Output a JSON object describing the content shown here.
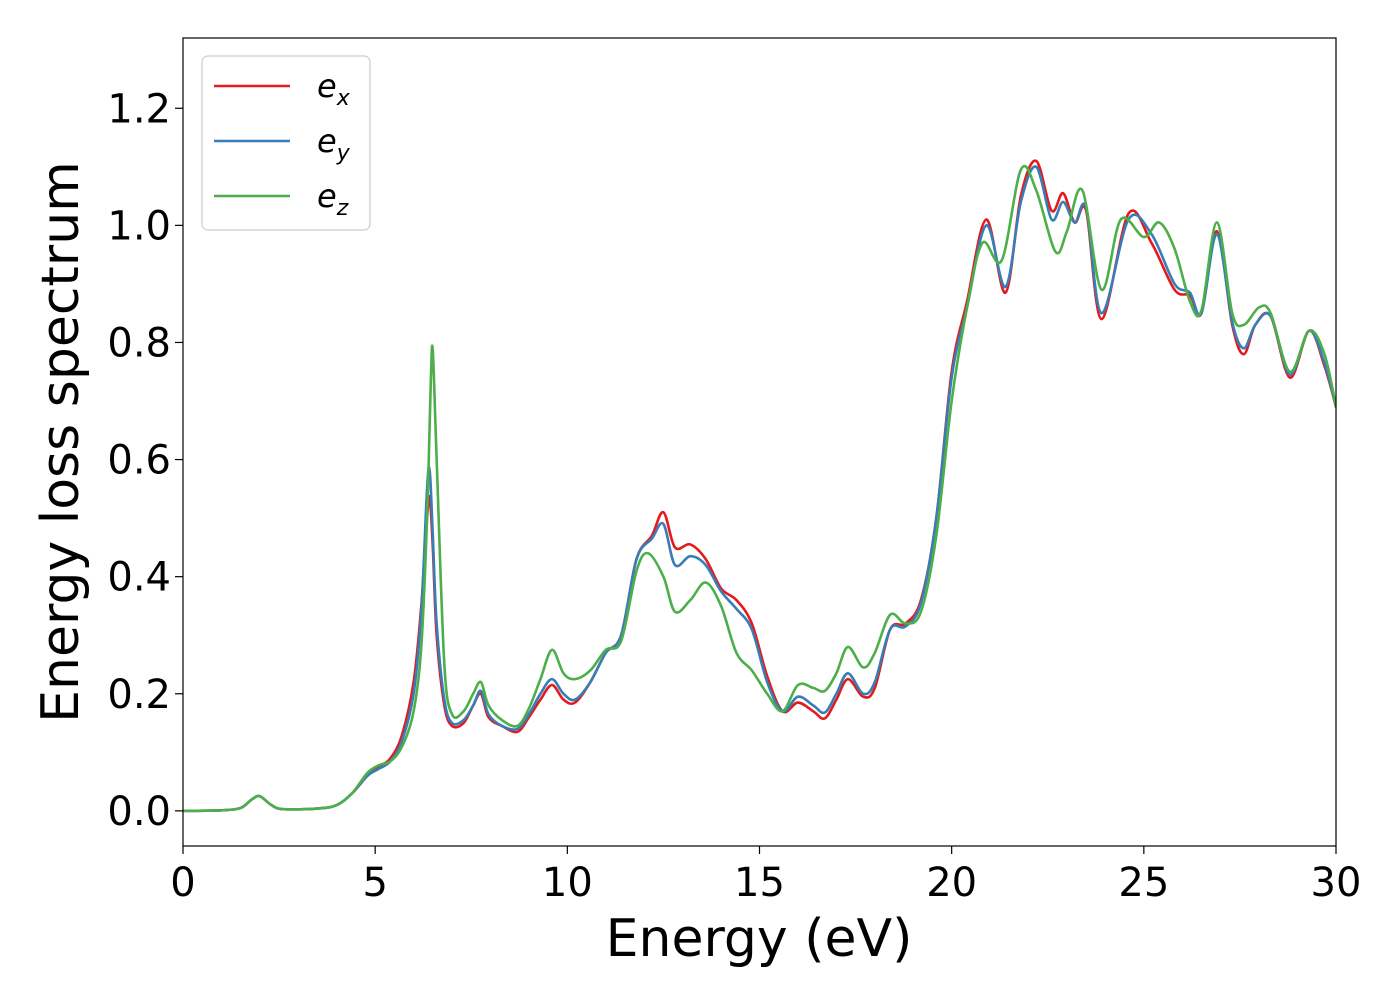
{
  "chart_data": {
    "type": "line",
    "title": "",
    "xlabel": "Energy (eV)",
    "ylabel": "Energy loss spectrum",
    "xlim": [
      0,
      30
    ],
    "ylim": [
      -0.06,
      1.32
    ],
    "xticks": [
      0,
      5,
      10,
      15,
      20,
      25,
      30
    ],
    "xtick_labels": [
      "0",
      "5",
      "10",
      "15",
      "20",
      "25",
      "30"
    ],
    "yticks": [
      0.0,
      0.2,
      0.4,
      0.6,
      0.8,
      1.0,
      1.2
    ],
    "ytick_labels": [
      "0.0",
      "0.2",
      "0.4",
      "0.6",
      "0.8",
      "1.0",
      "1.2"
    ],
    "grid": false,
    "legend_position": "top-left",
    "series": [
      {
        "name": "e_x",
        "legend_base": "e",
        "legend_sub": "x",
        "color": "#e41a1c",
        "points": [
          [
            0,
            0
          ],
          [
            1,
            0.001
          ],
          [
            1.5,
            0.005
          ],
          [
            1.8,
            0.02
          ],
          [
            2,
            0.025
          ],
          [
            2.3,
            0.01
          ],
          [
            2.6,
            0.003
          ],
          [
            3.5,
            0.004
          ],
          [
            4,
            0.01
          ],
          [
            4.4,
            0.03
          ],
          [
            4.8,
            0.06
          ],
          [
            5.1,
            0.075
          ],
          [
            5.4,
            0.09
          ],
          [
            5.7,
            0.13
          ],
          [
            6,
            0.22
          ],
          [
            6.2,
            0.35
          ],
          [
            6.35,
            0.5
          ],
          [
            6.42,
            0.535
          ],
          [
            6.5,
            0.45
          ],
          [
            6.6,
            0.3
          ],
          [
            6.8,
            0.18
          ],
          [
            7,
            0.145
          ],
          [
            7.3,
            0.15
          ],
          [
            7.55,
            0.18
          ],
          [
            7.75,
            0.2
          ],
          [
            7.95,
            0.16
          ],
          [
            8.3,
            0.145
          ],
          [
            8.7,
            0.135
          ],
          [
            9,
            0.16
          ],
          [
            9.3,
            0.19
          ],
          [
            9.6,
            0.215
          ],
          [
            9.9,
            0.19
          ],
          [
            10.2,
            0.185
          ],
          [
            10.6,
            0.22
          ],
          [
            11,
            0.27
          ],
          [
            11.4,
            0.3
          ],
          [
            11.8,
            0.43
          ],
          [
            12.2,
            0.47
          ],
          [
            12.5,
            0.51
          ],
          [
            12.8,
            0.45
          ],
          [
            13.2,
            0.455
          ],
          [
            13.6,
            0.43
          ],
          [
            14,
            0.38
          ],
          [
            14.4,
            0.36
          ],
          [
            14.8,
            0.32
          ],
          [
            15.2,
            0.23
          ],
          [
            15.6,
            0.17
          ],
          [
            16,
            0.185
          ],
          [
            16.4,
            0.17
          ],
          [
            16.7,
            0.158
          ],
          [
            17,
            0.19
          ],
          [
            17.3,
            0.225
          ],
          [
            17.7,
            0.195
          ],
          [
            18,
            0.21
          ],
          [
            18.4,
            0.31
          ],
          [
            18.8,
            0.32
          ],
          [
            19.2,
            0.36
          ],
          [
            19.6,
            0.5
          ],
          [
            20,
            0.75
          ],
          [
            20.4,
            0.87
          ],
          [
            20.9,
            1.01
          ],
          [
            21.4,
            0.885
          ],
          [
            21.8,
            1.05
          ],
          [
            22.2,
            1.11
          ],
          [
            22.6,
            1.025
          ],
          [
            22.9,
            1.055
          ],
          [
            23.2,
            1.005
          ],
          [
            23.5,
            1.025
          ],
          [
            23.9,
            0.84
          ],
          [
            24.6,
            1.02
          ],
          [
            25.2,
            0.97
          ],
          [
            25.8,
            0.89
          ],
          [
            26.2,
            0.88
          ],
          [
            26.5,
            0.85
          ],
          [
            26.9,
            0.99
          ],
          [
            27.3,
            0.83
          ],
          [
            27.6,
            0.78
          ],
          [
            27.9,
            0.83
          ],
          [
            28.3,
            0.845
          ],
          [
            28.8,
            0.74
          ],
          [
            29.3,
            0.82
          ],
          [
            29.7,
            0.76
          ],
          [
            30,
            0.69
          ]
        ]
      },
      {
        "name": "e_y",
        "legend_base": "e",
        "legend_sub": "y",
        "color": "#377eb8",
        "points": [
          [
            0,
            0
          ],
          [
            1,
            0.001
          ],
          [
            1.5,
            0.005
          ],
          [
            1.8,
            0.02
          ],
          [
            2,
            0.025
          ],
          [
            2.3,
            0.01
          ],
          [
            2.6,
            0.003
          ],
          [
            3.5,
            0.004
          ],
          [
            4,
            0.01
          ],
          [
            4.4,
            0.03
          ],
          [
            4.8,
            0.06
          ],
          [
            5.1,
            0.072
          ],
          [
            5.4,
            0.085
          ],
          [
            5.7,
            0.12
          ],
          [
            6,
            0.2
          ],
          [
            6.2,
            0.34
          ],
          [
            6.35,
            0.55
          ],
          [
            6.42,
            0.58
          ],
          [
            6.5,
            0.47
          ],
          [
            6.6,
            0.32
          ],
          [
            6.8,
            0.19
          ],
          [
            7,
            0.15
          ],
          [
            7.3,
            0.155
          ],
          [
            7.55,
            0.18
          ],
          [
            7.75,
            0.205
          ],
          [
            7.95,
            0.165
          ],
          [
            8.3,
            0.145
          ],
          [
            8.7,
            0.14
          ],
          [
            9,
            0.165
          ],
          [
            9.3,
            0.2
          ],
          [
            9.6,
            0.225
          ],
          [
            9.9,
            0.2
          ],
          [
            10.2,
            0.19
          ],
          [
            10.6,
            0.22
          ],
          [
            11,
            0.27
          ],
          [
            11.4,
            0.3
          ],
          [
            11.8,
            0.43
          ],
          [
            12.2,
            0.465
          ],
          [
            12.5,
            0.49
          ],
          [
            12.8,
            0.42
          ],
          [
            13.2,
            0.435
          ],
          [
            13.6,
            0.42
          ],
          [
            14,
            0.375
          ],
          [
            14.4,
            0.345
          ],
          [
            14.8,
            0.31
          ],
          [
            15.2,
            0.22
          ],
          [
            15.6,
            0.17
          ],
          [
            16,
            0.195
          ],
          [
            16.4,
            0.18
          ],
          [
            16.7,
            0.168
          ],
          [
            17,
            0.2
          ],
          [
            17.3,
            0.235
          ],
          [
            17.7,
            0.2
          ],
          [
            18,
            0.22
          ],
          [
            18.4,
            0.31
          ],
          [
            18.8,
            0.315
          ],
          [
            19.2,
            0.355
          ],
          [
            19.6,
            0.5
          ],
          [
            20,
            0.74
          ],
          [
            20.4,
            0.86
          ],
          [
            20.9,
            1.0
          ],
          [
            21.4,
            0.895
          ],
          [
            21.8,
            1.04
          ],
          [
            22.2,
            1.1
          ],
          [
            22.6,
            1.01
          ],
          [
            22.9,
            1.04
          ],
          [
            23.2,
            1.005
          ],
          [
            23.5,
            1.03
          ],
          [
            23.9,
            0.85
          ],
          [
            24.6,
            1.01
          ],
          [
            25.2,
            0.985
          ],
          [
            25.8,
            0.9
          ],
          [
            26.2,
            0.885
          ],
          [
            26.5,
            0.85
          ],
          [
            26.9,
            0.985
          ],
          [
            27.3,
            0.835
          ],
          [
            27.6,
            0.79
          ],
          [
            27.9,
            0.83
          ],
          [
            28.3,
            0.845
          ],
          [
            28.8,
            0.745
          ],
          [
            29.3,
            0.82
          ],
          [
            29.7,
            0.765
          ],
          [
            30,
            0.69
          ]
        ]
      },
      {
        "name": "e_z",
        "legend_base": "e",
        "legend_sub": "z",
        "color": "#4daf4a",
        "points": [
          [
            0,
            0
          ],
          [
            1,
            0.001
          ],
          [
            1.5,
            0.005
          ],
          [
            1.8,
            0.02
          ],
          [
            2,
            0.025
          ],
          [
            2.3,
            0.01
          ],
          [
            2.6,
            0.003
          ],
          [
            3.5,
            0.004
          ],
          [
            4,
            0.01
          ],
          [
            4.4,
            0.03
          ],
          [
            4.8,
            0.065
          ],
          [
            5.1,
            0.078
          ],
          [
            5.4,
            0.085
          ],
          [
            5.7,
            0.11
          ],
          [
            6,
            0.17
          ],
          [
            6.2,
            0.28
          ],
          [
            6.35,
            0.5
          ],
          [
            6.45,
            0.74
          ],
          [
            6.5,
            0.785
          ],
          [
            6.6,
            0.6
          ],
          [
            6.8,
            0.25
          ],
          [
            7,
            0.165
          ],
          [
            7.3,
            0.17
          ],
          [
            7.55,
            0.2
          ],
          [
            7.75,
            0.22
          ],
          [
            7.95,
            0.18
          ],
          [
            8.3,
            0.155
          ],
          [
            8.7,
            0.145
          ],
          [
            9,
            0.175
          ],
          [
            9.3,
            0.225
          ],
          [
            9.6,
            0.275
          ],
          [
            9.9,
            0.235
          ],
          [
            10.2,
            0.225
          ],
          [
            10.6,
            0.24
          ],
          [
            11,
            0.275
          ],
          [
            11.4,
            0.29
          ],
          [
            11.8,
            0.41
          ],
          [
            12.1,
            0.44
          ],
          [
            12.5,
            0.4
          ],
          [
            12.8,
            0.34
          ],
          [
            13.2,
            0.36
          ],
          [
            13.6,
            0.39
          ],
          [
            14,
            0.35
          ],
          [
            14.4,
            0.27
          ],
          [
            14.8,
            0.24
          ],
          [
            15.2,
            0.2
          ],
          [
            15.6,
            0.17
          ],
          [
            16,
            0.215
          ],
          [
            16.4,
            0.21
          ],
          [
            16.7,
            0.205
          ],
          [
            17,
            0.235
          ],
          [
            17.3,
            0.28
          ],
          [
            17.7,
            0.245
          ],
          [
            18,
            0.27
          ],
          [
            18.4,
            0.335
          ],
          [
            18.8,
            0.32
          ],
          [
            19.2,
            0.34
          ],
          [
            19.6,
            0.47
          ],
          [
            20,
            0.7
          ],
          [
            20.4,
            0.86
          ],
          [
            20.8,
            0.97
          ],
          [
            21.3,
            0.94
          ],
          [
            21.8,
            1.095
          ],
          [
            22.2,
            1.06
          ],
          [
            22.7,
            0.955
          ],
          [
            23,
            0.99
          ],
          [
            23.4,
            1.06
          ],
          [
            23.9,
            0.89
          ],
          [
            24.4,
            1.01
          ],
          [
            25,
            0.98
          ],
          [
            25.4,
            1.005
          ],
          [
            25.8,
            0.96
          ],
          [
            26.2,
            0.87
          ],
          [
            26.5,
            0.855
          ],
          [
            26.9,
            1.005
          ],
          [
            27.3,
            0.85
          ],
          [
            27.6,
            0.83
          ],
          [
            28,
            0.86
          ],
          [
            28.3,
            0.85
          ],
          [
            28.8,
            0.75
          ],
          [
            29.3,
            0.82
          ],
          [
            29.7,
            0.78
          ],
          [
            30,
            0.69
          ]
        ]
      }
    ]
  }
}
